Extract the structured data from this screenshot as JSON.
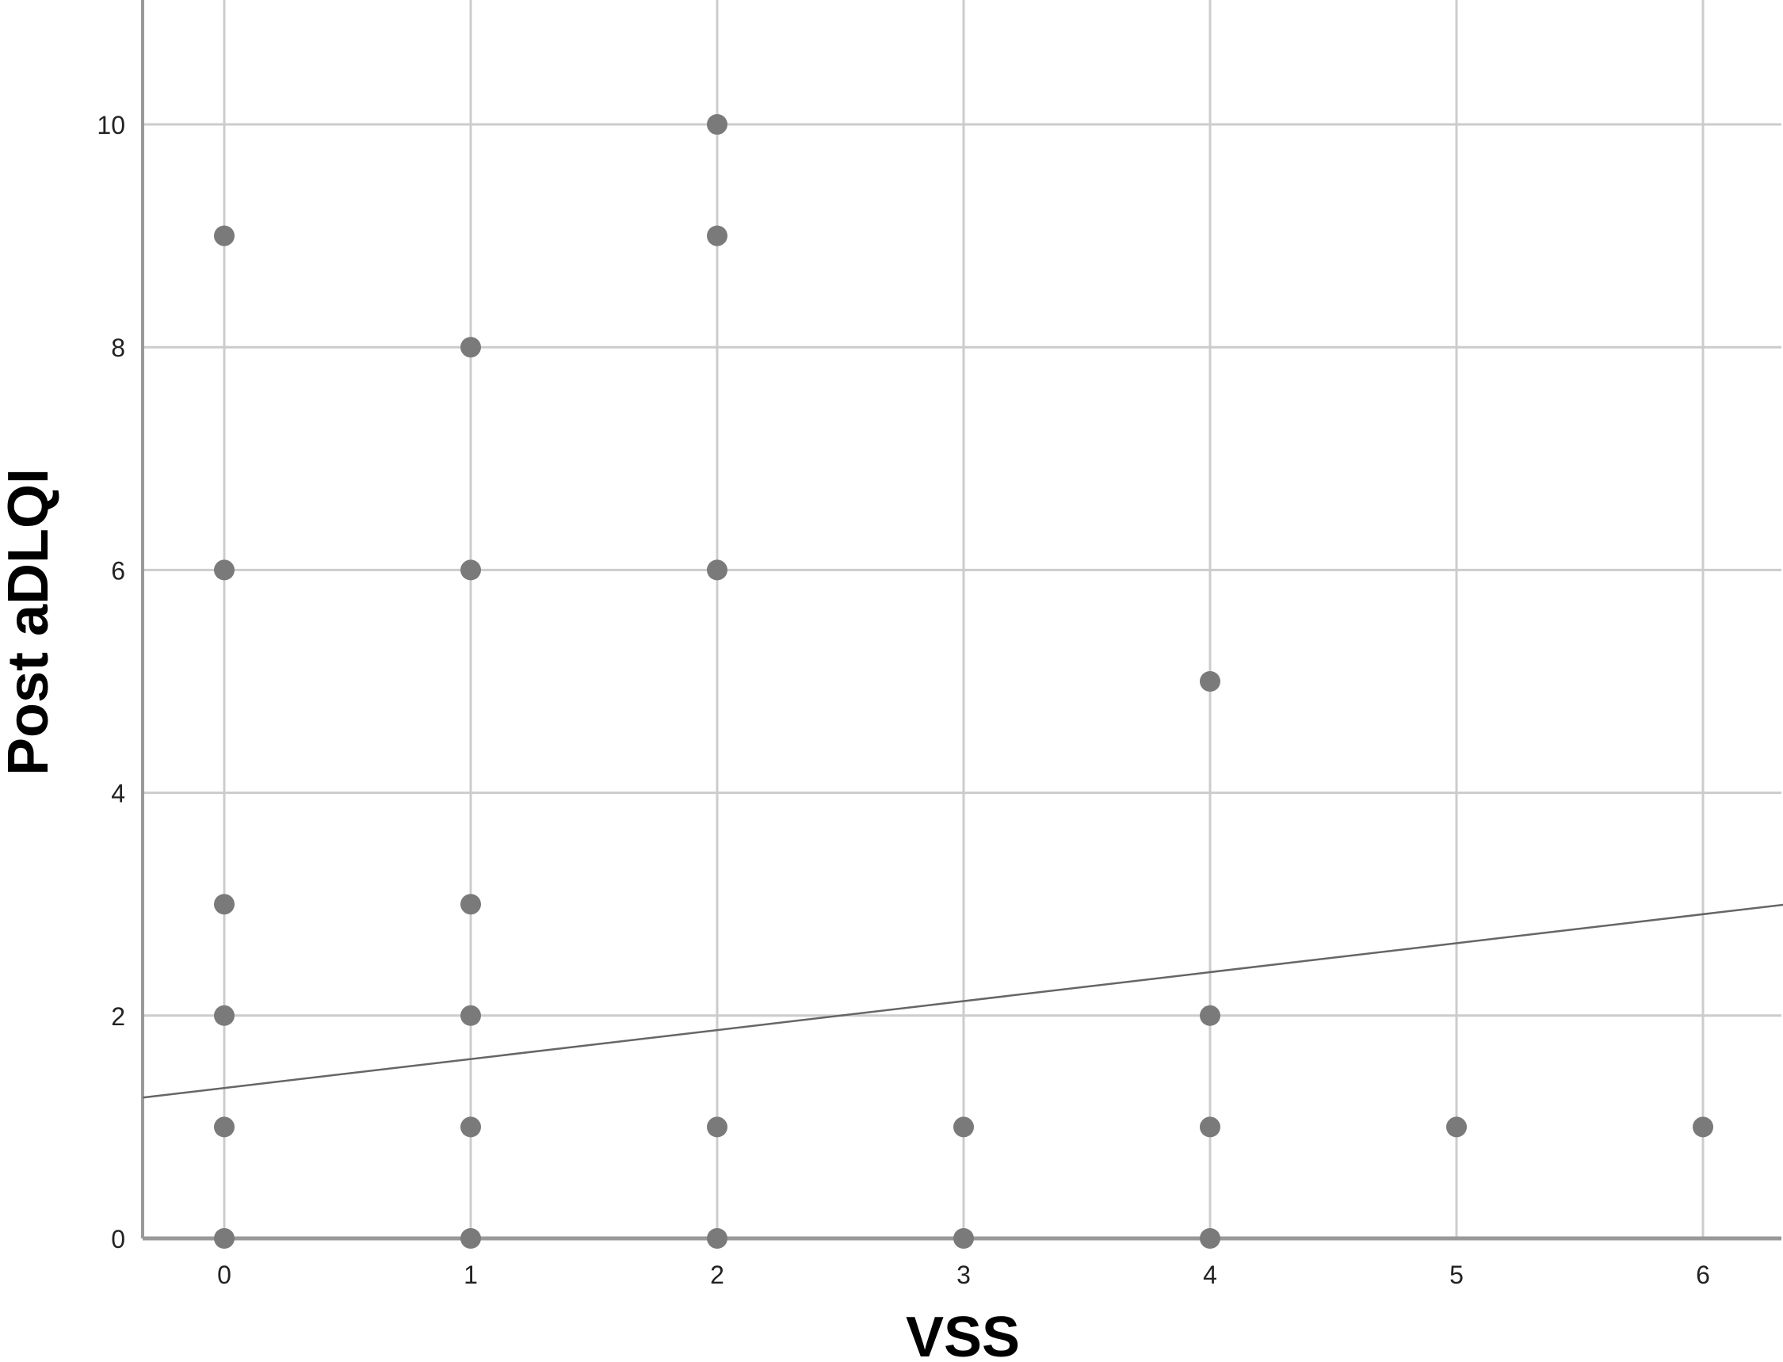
{
  "chart_data": {
    "type": "scatter",
    "title": "",
    "xlabel": "VSS",
    "ylabel": "Post aDLQI",
    "xlim": [
      -0.33,
      6.33
    ],
    "ylim": [
      0,
      11.1
    ],
    "x_ticks": [
      "0",
      "1",
      "2",
      "3",
      "4",
      "5",
      "6"
    ],
    "y_ticks": [
      "0",
      "2",
      "4",
      "6",
      "8",
      "10"
    ],
    "grid": true,
    "points": [
      {
        "x": 0,
        "y": 0
      },
      {
        "x": 0,
        "y": 1
      },
      {
        "x": 0,
        "y": 2
      },
      {
        "x": 0,
        "y": 3
      },
      {
        "x": 0,
        "y": 6
      },
      {
        "x": 0,
        "y": 9
      },
      {
        "x": 1,
        "y": 0
      },
      {
        "x": 1,
        "y": 1
      },
      {
        "x": 1,
        "y": 2
      },
      {
        "x": 1,
        "y": 3
      },
      {
        "x": 1,
        "y": 6
      },
      {
        "x": 1,
        "y": 8
      },
      {
        "x": 2,
        "y": 0
      },
      {
        "x": 2,
        "y": 1
      },
      {
        "x": 2,
        "y": 6
      },
      {
        "x": 2,
        "y": 9
      },
      {
        "x": 2,
        "y": 10
      },
      {
        "x": 3,
        "y": 0
      },
      {
        "x": 3,
        "y": 1
      },
      {
        "x": 4,
        "y": 0
      },
      {
        "x": 4,
        "y": 1
      },
      {
        "x": 4,
        "y": 2
      },
      {
        "x": 4,
        "y": 5
      },
      {
        "x": 5,
        "y": 1
      },
      {
        "x": 6,
        "y": 1
      }
    ],
    "fit_line": {
      "intercept": 1.35,
      "slope": 0.26
    },
    "colors": {
      "points": "#7a7a7a",
      "grid": "#cccccc",
      "axis": "#999999",
      "fit": "#666666"
    }
  }
}
